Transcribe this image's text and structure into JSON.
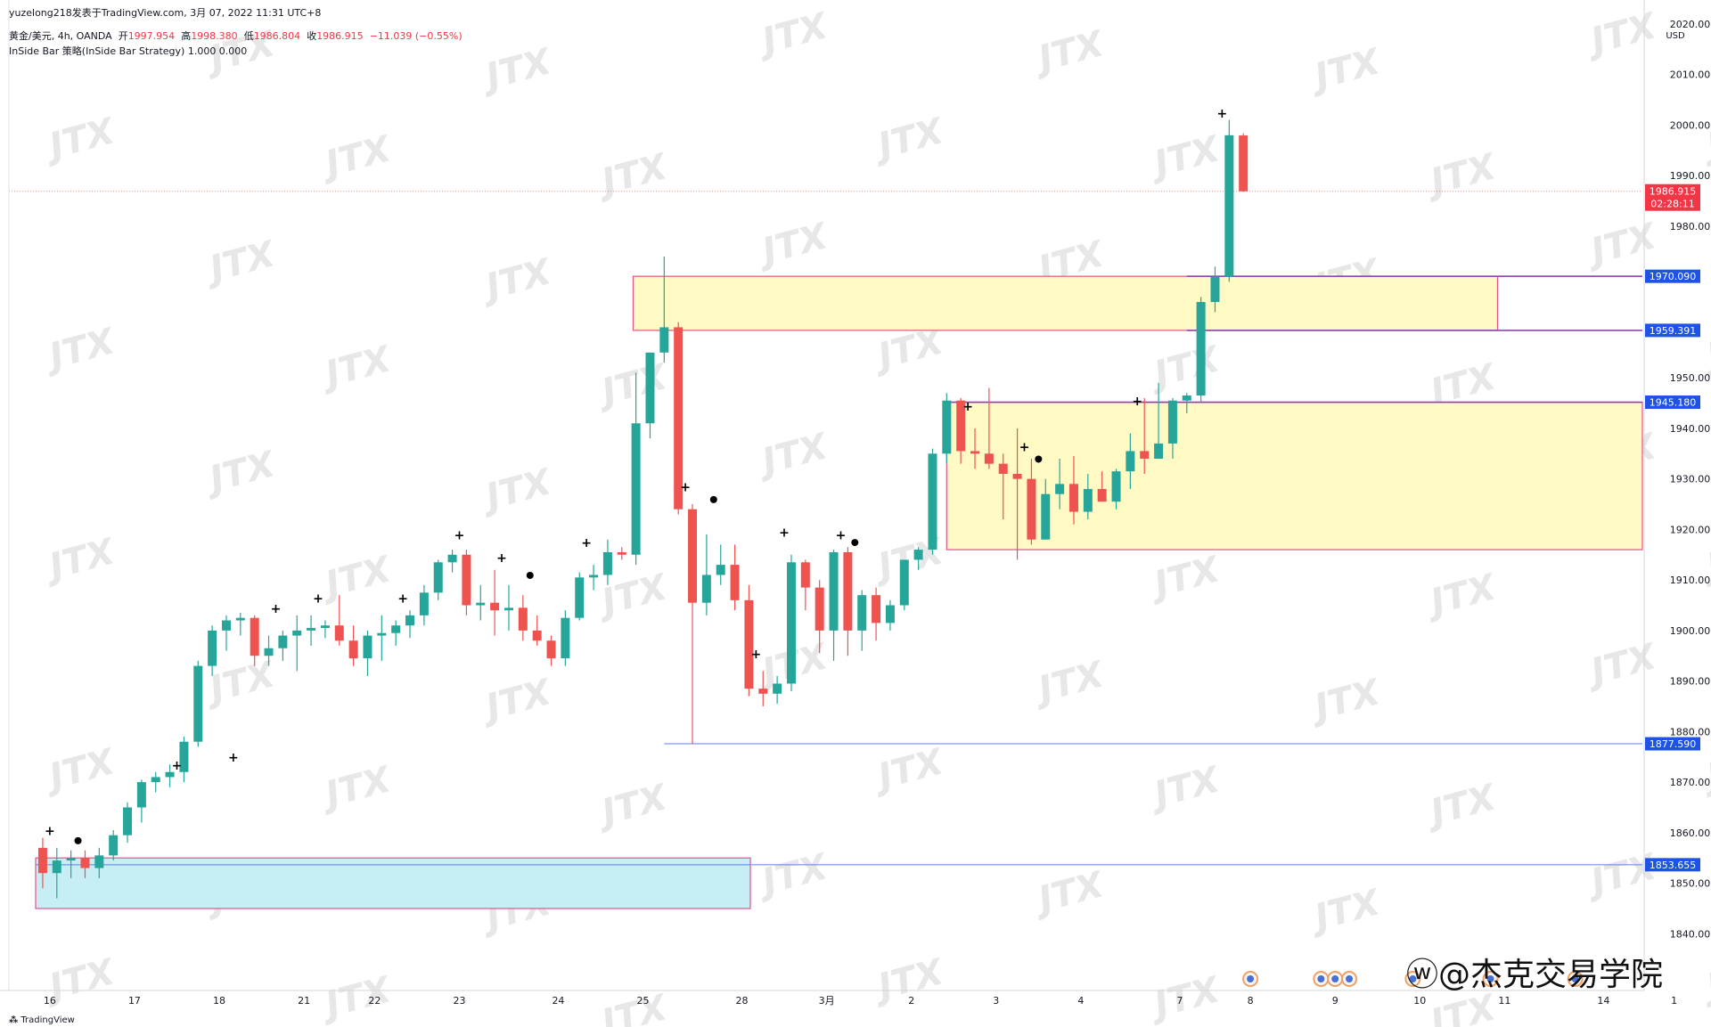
{
  "header": {
    "publisher": "yuzelong218发表于TradingView.com,  3月 07, 2022 11:31 UTC+8",
    "symbol": "黄金/美元, 4h, OANDA",
    "open_label": "开",
    "open": "1997.954",
    "high_label": "高",
    "high": "1998.380",
    "low_label": "低",
    "low": "1986.804",
    "close_label": "收",
    "close": "1986.915",
    "change": "−11.039 (−0.55%)",
    "indicator": "InSide Bar 策略(InSide Bar Strategy)  1.000  0.000"
  },
  "footer": {
    "logo_text": "TradingView"
  },
  "credit": "@杰克交易学院",
  "watermark": "JTX",
  "colors": {
    "up": "#26a69a",
    "down": "#ef5350",
    "zone_yellow": "#fff9c4",
    "zone_cyan": "#c8eef5",
    "zone_border": "#e5528a",
    "level_line": "#5b7fe8",
    "level_line_purple": "#8e44ad",
    "price_label_bg": "#1e53e5",
    "last_price_bg": "#f23645"
  },
  "chart_data": {
    "type": "candlestick",
    "timeframe": "4h",
    "currency": "USD",
    "y_ticks": [
      1840,
      1850,
      1860,
      1870,
      1880,
      1890,
      1900,
      1910,
      1920,
      1930,
      1940,
      1950,
      1960,
      1970,
      1980,
      1990,
      2000,
      2010,
      2020
    ],
    "y_tick_labels": [
      "1840.000",
      "1850.000",
      "1860.000",
      "1870.000",
      "1880.000",
      "1890.000",
      "1900.000",
      "1910.000",
      "1920.000",
      "1930.000",
      "1940.000",
      "1950.000",
      "",
      "",
      "1980.000",
      "1990.000",
      "2000.000",
      "2010.000",
      "2020.000"
    ],
    "ylim": [
      1834,
      2022
    ],
    "x_labels": [
      {
        "label": "16",
        "t": 1
      },
      {
        "label": "17",
        "t": 7
      },
      {
        "label": "18",
        "t": 13
      },
      {
        "label": "21",
        "t": 19
      },
      {
        "label": "22",
        "t": 24
      },
      {
        "label": "23",
        "t": 30
      },
      {
        "label": "24",
        "t": 37
      },
      {
        "label": "25",
        "t": 43
      },
      {
        "label": "28",
        "t": 50
      },
      {
        "label": "3月",
        "t": 56
      },
      {
        "label": "2",
        "t": 62
      },
      {
        "label": "3",
        "t": 68
      },
      {
        "label": "4",
        "t": 74
      },
      {
        "label": "7",
        "t": 81
      },
      {
        "label": "8",
        "t": 86
      },
      {
        "label": "9",
        "t": 92
      },
      {
        "label": "10",
        "t": 98
      },
      {
        "label": "11",
        "t": 104
      },
      {
        "label": "14",
        "t": 111
      },
      {
        "label": "1",
        "t": 116
      }
    ],
    "candles": [
      [
        1857.0,
        1859.0,
        1849.0,
        1852.0
      ],
      [
        1852.0,
        1857.0,
        1847.0,
        1854.5
      ],
      [
        1854.5,
        1856.5,
        1851.0,
        1855.0
      ],
      [
        1855.0,
        1856.5,
        1851.0,
        1853.0
      ],
      [
        1853.0,
        1857.0,
        1851.0,
        1855.5
      ],
      [
        1855.5,
        1860.5,
        1854.5,
        1859.5
      ],
      [
        1859.5,
        1866.0,
        1858.0,
        1865.0
      ],
      [
        1865.0,
        1870.5,
        1862.0,
        1870.0
      ],
      [
        1870.0,
        1872.0,
        1868.0,
        1871.0
      ],
      [
        1871.0,
        1873.5,
        1869.0,
        1872.0
      ],
      [
        1872.0,
        1879.0,
        1870.0,
        1878.0
      ],
      [
        1878.0,
        1894.0,
        1877.0,
        1893.0
      ],
      [
        1893.0,
        1901.0,
        1891.0,
        1900.0
      ],
      [
        1900.0,
        1903.0,
        1896.0,
        1902.0
      ],
      [
        1902.0,
        1903.5,
        1899.0,
        1902.5
      ],
      [
        1902.5,
        1903.0,
        1893.0,
        1895.0
      ],
      [
        1895.0,
        1899.0,
        1893.0,
        1896.5
      ],
      [
        1896.5,
        1900.0,
        1894.0,
        1899.0
      ],
      [
        1899.0,
        1903.0,
        1892.0,
        1900.0
      ],
      [
        1900.0,
        1903.0,
        1897.0,
        1900.5
      ],
      [
        1900.5,
        1902.0,
        1898.5,
        1901.0
      ],
      [
        1901.0,
        1907.0,
        1897.0,
        1898.0
      ],
      [
        1898.0,
        1901.0,
        1893.0,
        1894.5
      ],
      [
        1894.5,
        1900.0,
        1891.0,
        1899.0
      ],
      [
        1899.0,
        1903.0,
        1894.0,
        1899.5
      ],
      [
        1899.5,
        1902.0,
        1897.0,
        1901.0
      ],
      [
        1901.0,
        1904.0,
        1898.5,
        1903.0
      ],
      [
        1903.0,
        1909.0,
        1901.0,
        1907.5
      ],
      [
        1907.5,
        1914.0,
        1906.0,
        1913.5
      ],
      [
        1913.5,
        1916.0,
        1911.5,
        1915.0
      ],
      [
        1915.0,
        1916.0,
        1903.0,
        1905.0
      ],
      [
        1905.0,
        1909.0,
        1902.0,
        1905.5
      ],
      [
        1905.5,
        1912.0,
        1899.0,
        1904.0
      ],
      [
        1904.0,
        1909.0,
        1900.0,
        1904.5
      ],
      [
        1904.5,
        1907.0,
        1898.0,
        1900.0
      ],
      [
        1900.0,
        1903.0,
        1897.0,
        1898.0
      ],
      [
        1898.0,
        1899.0,
        1893.0,
        1894.5
      ],
      [
        1894.5,
        1904.0,
        1893.0,
        1902.5
      ],
      [
        1902.5,
        1911.5,
        1902.0,
        1910.5
      ],
      [
        1910.5,
        1913.0,
        1908.0,
        1911.0
      ],
      [
        1911.0,
        1918.0,
        1909.0,
        1915.5
      ],
      [
        1915.5,
        1916.5,
        1914.0,
        1915.0
      ],
      [
        1915.0,
        1951.0,
        1913.0,
        1941.0
      ],
      [
        1941.0,
        1955.0,
        1938.0,
        1955.0
      ],
      [
        1955.0,
        1974.0,
        1953.0,
        1960.0
      ],
      [
        1960.0,
        1961.0,
        1923.0,
        1924.0
      ],
      [
        1924.0,
        1925.0,
        1877.5,
        1905.5
      ],
      [
        1905.5,
        1919.0,
        1903.0,
        1911.0
      ],
      [
        1911.0,
        1917.0,
        1909.0,
        1913.0
      ],
      [
        1913.0,
        1917.0,
        1904.0,
        1906.0
      ],
      [
        1906.0,
        1909.0,
        1887.0,
        1888.5
      ],
      [
        1888.5,
        1892.0,
        1885.0,
        1887.5
      ],
      [
        1887.5,
        1891.0,
        1885.5,
        1889.5
      ],
      [
        1889.5,
        1915.0,
        1888.0,
        1913.5
      ],
      [
        1913.5,
        1914.0,
        1904.0,
        1908.5
      ],
      [
        1908.5,
        1910.0,
        1895.5,
        1900.0
      ],
      [
        1900.0,
        1916.0,
        1894.0,
        1915.5
      ],
      [
        1915.5,
        1916.5,
        1895.0,
        1900.0
      ],
      [
        1900.0,
        1908.0,
        1896.0,
        1907.0
      ],
      [
        1907.0,
        1908.5,
        1898.0,
        1901.5
      ],
      [
        1901.5,
        1906.0,
        1900.0,
        1905.0
      ],
      [
        1905.0,
        1914.0,
        1904.0,
        1914.0
      ],
      [
        1914.0,
        1916.5,
        1912.0,
        1916.0
      ],
      [
        1916.0,
        1936.0,
        1915.0,
        1935.0
      ],
      [
        1935.0,
        1947.0,
        1933.0,
        1945.5
      ],
      [
        1945.5,
        1946.0,
        1933.0,
        1935.5
      ],
      [
        1935.5,
        1940.0,
        1932.0,
        1935.0
      ],
      [
        1935.0,
        1948.0,
        1932.0,
        1933.0
      ],
      [
        1933.0,
        1935.0,
        1922.0,
        1931.0
      ],
      [
        1931.0,
        1940.0,
        1914.0,
        1930.0
      ],
      [
        1930.0,
        1934.0,
        1917.0,
        1918.0
      ],
      [
        1918.0,
        1930.0,
        1918.0,
        1927.0
      ],
      [
        1927.0,
        1934.0,
        1924.0,
        1929.0
      ],
      [
        1929.0,
        1934.5,
        1921.0,
        1923.5
      ],
      [
        1923.5,
        1931.0,
        1922.0,
        1928.0
      ],
      [
        1928.0,
        1931.5,
        1926.0,
        1925.5
      ],
      [
        1925.5,
        1932.0,
        1924.0,
        1931.5
      ],
      [
        1931.5,
        1939.0,
        1928.0,
        1935.5
      ],
      [
        1935.5,
        1946.0,
        1931.0,
        1934.0
      ],
      [
        1934.0,
        1949.0,
        1934.0,
        1937.0
      ],
      [
        1937.0,
        1946.0,
        1934.0,
        1945.5
      ],
      [
        1945.5,
        1947.0,
        1943.0,
        1946.5
      ],
      [
        1946.5,
        1966.0,
        1945.0,
        1965.0
      ],
      [
        1965.0,
        1972.0,
        1963.0,
        1970.0
      ],
      [
        1970.0,
        2001.0,
        1969.0,
        1998.0
      ],
      [
        1997.954,
        1998.38,
        1986.804,
        1986.915
      ]
    ],
    "candle_x_start": 0.5,
    "candle_x_step": 1.0,
    "markers": [
      {
        "t": 1,
        "type": "cross",
        "price": 1859.0
      },
      {
        "t": 3,
        "type": "dot",
        "price": 1857.0
      },
      {
        "t": 10,
        "type": "cross",
        "price": 1872.0
      },
      {
        "t": 14,
        "type": "cross",
        "price": 1873.5
      },
      {
        "t": 17,
        "type": "cross",
        "price": 1903.0
      },
      {
        "t": 20,
        "type": "cross",
        "price": 1905.0
      },
      {
        "t": 26,
        "type": "cross",
        "price": 1905.0
      },
      {
        "t": 30,
        "type": "cross",
        "price": 1917.5
      },
      {
        "t": 33,
        "type": "cross",
        "price": 1913.0
      },
      {
        "t": 35,
        "type": "dot",
        "price": 1909.5
      },
      {
        "t": 39,
        "type": "cross",
        "price": 1916.0
      },
      {
        "t": 46,
        "type": "cross",
        "price": 1927.0
      },
      {
        "t": 48,
        "type": "dot",
        "price": 1924.5
      },
      {
        "t": 51,
        "type": "cross",
        "price": 1894.0
      },
      {
        "t": 53,
        "type": "cross",
        "price": 1918.0
      },
      {
        "t": 57,
        "type": "cross",
        "price": 1917.5
      },
      {
        "t": 58,
        "type": "dot",
        "price": 1916.0
      },
      {
        "t": 66,
        "type": "cross",
        "price": 1943.0
      },
      {
        "t": 70,
        "type": "cross",
        "price": 1935.0
      },
      {
        "t": 71,
        "type": "dot",
        "price": 1932.5
      },
      {
        "t": 78,
        "type": "cross",
        "price": 1944.0
      },
      {
        "t": 84,
        "type": "cross",
        "price": 2001.0
      }
    ],
    "zones": [
      {
        "type": "supply-demand",
        "color": "yellow",
        "t_start": 42.3,
        "t_end": 103.5,
        "top": 1970.09,
        "bottom": 1959.391
      },
      {
        "type": "supply-demand",
        "color": "yellow",
        "t_start": 64.5,
        "t_end": 116.6,
        "top": 1945.18,
        "bottom": 1916.0
      },
      {
        "type": "supply-demand",
        "color": "cyan",
        "t_start": 0,
        "t_end": 50.6,
        "top": 1855.0,
        "bottom": 1845.0
      }
    ],
    "levels": [
      {
        "price": 1970.09,
        "label": "1970.090",
        "t_start": 81.5,
        "style": "purple"
      },
      {
        "price": 1959.391,
        "label": "1959.391",
        "t_start": 81.5,
        "style": "purple"
      },
      {
        "price": 1945.18,
        "label": "1945.180",
        "t_start": 64.5,
        "style": "purple"
      },
      {
        "price": 1877.59,
        "label": "1877.590",
        "t_start": 44.5,
        "style": "blue"
      },
      {
        "price": 1853.655,
        "label": "1853.655",
        "t_start": 0,
        "style": "blue"
      }
    ],
    "last_price": {
      "price": 1986.915,
      "label": "1986.915",
      "countdown": "02:28:11"
    },
    "event_icons": [
      86,
      91,
      92,
      93,
      97.5,
      103,
      109
    ]
  }
}
